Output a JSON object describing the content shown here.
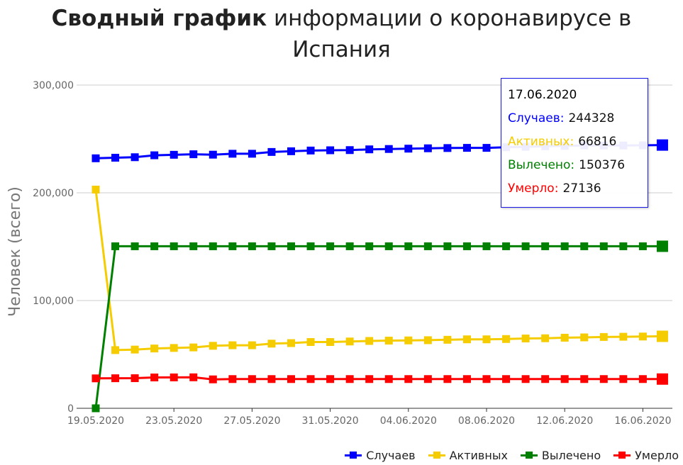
{
  "title": {
    "bold": "Сводный график",
    "rest": "информации о коронавирусе в",
    "line2": "Испания"
  },
  "tooltip": {
    "date": "17.06.2020",
    "rows": [
      {
        "label": "Случаев:",
        "value": "244328",
        "color": "#0000ff"
      },
      {
        "label": "Активных:",
        "value": "66816",
        "color": "#f5cc00"
      },
      {
        "label": "Вылечено:",
        "value": "150376",
        "color": "#008000"
      },
      {
        "label": "Умерло:",
        "value": "27136",
        "color": "#ff0000"
      }
    ]
  },
  "chart_data": {
    "type": "line",
    "ylabel": "Человек (всего)",
    "ylim": [
      0,
      300000
    ],
    "yticks": [
      0,
      100000,
      200000,
      300000
    ],
    "ytick_labels": [
      "0",
      "100,000",
      "200,000",
      "300,000"
    ],
    "grid": true,
    "legend_position": "bottom-right",
    "x": [
      "19.05.2020",
      "20.05.2020",
      "21.05.2020",
      "22.05.2020",
      "23.05.2020",
      "24.05.2020",
      "25.05.2020",
      "26.05.2020",
      "27.05.2020",
      "28.05.2020",
      "29.05.2020",
      "30.05.2020",
      "31.05.2020",
      "01.06.2020",
      "02.06.2020",
      "03.06.2020",
      "04.06.2020",
      "05.06.2020",
      "06.06.2020",
      "07.06.2020",
      "08.06.2020",
      "09.06.2020",
      "10.06.2020",
      "11.06.2020",
      "12.06.2020",
      "13.06.2020",
      "14.06.2020",
      "15.06.2020",
      "16.06.2020",
      "17.06.2020"
    ],
    "xtick_labels": [
      "19.05.2020",
      "23.05.2020",
      "27.05.2020",
      "31.05.2020",
      "04.06.2020",
      "08.06.2020",
      "12.06.2020",
      "16.06.2020"
    ],
    "series": [
      {
        "name": "Случаев",
        "color": "#0000ff",
        "values": [
          232037,
          232555,
          233037,
          234824,
          235290,
          235772,
          235400,
          236259,
          236259,
          237906,
          238564,
          239228,
          239479,
          239638,
          240326,
          240660,
          240978,
          241310,
          241550,
          241717,
          241717,
          242280,
          242707,
          243209,
          243605,
          243928,
          243928,
          243928,
          244109,
          244328
        ]
      },
      {
        "name": "Активных",
        "color": "#f5cc00",
        "values": [
          203000,
          54000,
          54500,
          55500,
          56000,
          56500,
          58000,
          58500,
          58500,
          60000,
          60500,
          61500,
          61500,
          62000,
          62500,
          62800,
          63000,
          63200,
          63600,
          64000,
          64000,
          64300,
          64800,
          65000,
          65500,
          65800,
          66200,
          66400,
          66600,
          66816
        ]
      },
      {
        "name": "Вылечено",
        "color": "#008000",
        "values": [
          0,
          150376,
          150376,
          150376,
          150376,
          150376,
          150376,
          150376,
          150376,
          150376,
          150376,
          150376,
          150376,
          150376,
          150376,
          150376,
          150376,
          150376,
          150376,
          150376,
          150376,
          150376,
          150376,
          150376,
          150376,
          150376,
          150376,
          150376,
          150376,
          150376
        ]
      },
      {
        "name": "Умерло",
        "color": "#ff0000",
        "values": [
          27778,
          27888,
          27940,
          28628,
          28678,
          28752,
          26834,
          27117,
          27117,
          27119,
          27121,
          27125,
          27127,
          27127,
          27127,
          27128,
          27133,
          27134,
          27135,
          27136,
          27136,
          27136,
          27136,
          27136,
          27136,
          27136,
          27136,
          27136,
          27136,
          27136
        ]
      }
    ]
  }
}
